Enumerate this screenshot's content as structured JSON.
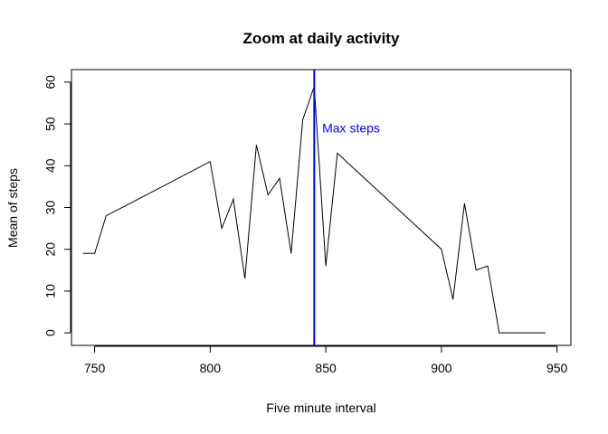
{
  "chart_data": {
    "type": "line",
    "title": "Zoom at daily activity",
    "xlabel": "Five minute interval",
    "ylabel": "Mean of steps",
    "xlim": [
      740,
      956
    ],
    "ylim": [
      -3,
      63
    ],
    "xticks": [
      750,
      800,
      850,
      900,
      950
    ],
    "yticks": [
      0,
      10,
      20,
      30,
      40,
      50,
      60
    ],
    "series": [
      {
        "color": "#000000",
        "x": [
          745,
          750,
          755,
          800,
          805,
          810,
          815,
          820,
          825,
          830,
          835,
          840,
          845,
          850,
          855,
          900,
          905,
          910,
          915,
          920,
          925,
          930,
          935,
          940,
          945
        ],
        "y": [
          19,
          19,
          28,
          41,
          25,
          32,
          13,
          45,
          33,
          37,
          19,
          51,
          59,
          16,
          43,
          20,
          8,
          31,
          15,
          16,
          0,
          0,
          0,
          0,
          0
        ]
      }
    ],
    "vline": {
      "x": 845,
      "color": "#0000ff"
    },
    "annotation": {
      "text": "Max steps",
      "x": 850,
      "y": 49,
      "color": "#0000ff"
    }
  }
}
